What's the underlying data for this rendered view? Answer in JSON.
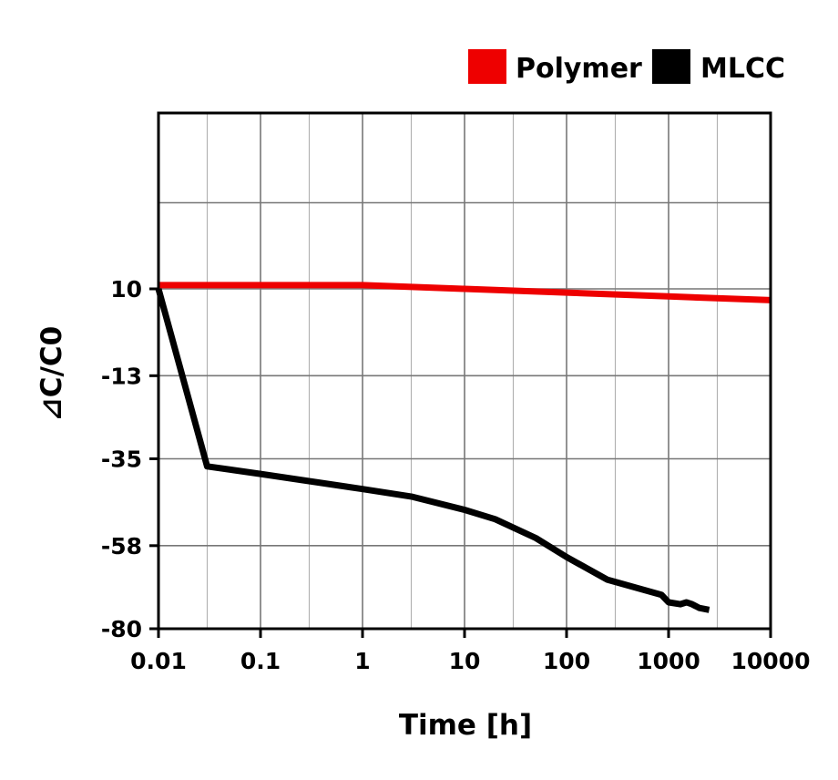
{
  "chart_data": {
    "type": "line",
    "xscale": "log",
    "xlabel": "Time [h]",
    "ylabel": "⊿C/C0",
    "xlim": [
      0.01,
      10000
    ],
    "ylim": [
      -80,
      10
    ],
    "x_tick_labels": [
      "0.01",
      "0.1",
      "1",
      "10",
      "100",
      "1000",
      "10000"
    ],
    "x_tick_values": [
      0.01,
      0.1,
      1,
      10,
      100,
      1000,
      10000
    ],
    "y_tick_labels": [
      "10",
      "-13",
      "-35",
      "-58",
      "-80"
    ],
    "y_tick_values": [
      10,
      -13,
      -35,
      -58,
      -80
    ],
    "grid": true,
    "legend_position": "top-right",
    "series": [
      {
        "name": "Polymer",
        "color": "#ee0000",
        "x": [
          0.01,
          0.1,
          1,
          10,
          100,
          1000,
          10000
        ],
        "y": [
          11.0,
          11.0,
          11.0,
          10.0,
          9.0,
          8.0,
          7.0
        ]
      },
      {
        "name": "MLCC",
        "color": "#000000",
        "x": [
          0.01,
          0.03,
          0.1,
          1,
          3,
          10,
          20,
          50,
          100,
          250,
          850,
          1000,
          1300,
          1500,
          1700,
          2000,
          2500
        ],
        "y": [
          10,
          -37,
          -39,
          -43,
          -45,
          -48.5,
          -51,
          -56,
          -61,
          -67,
          -71,
          -73,
          -73.5,
          -73,
          -73.5,
          -74.5,
          -75
        ]
      }
    ]
  }
}
